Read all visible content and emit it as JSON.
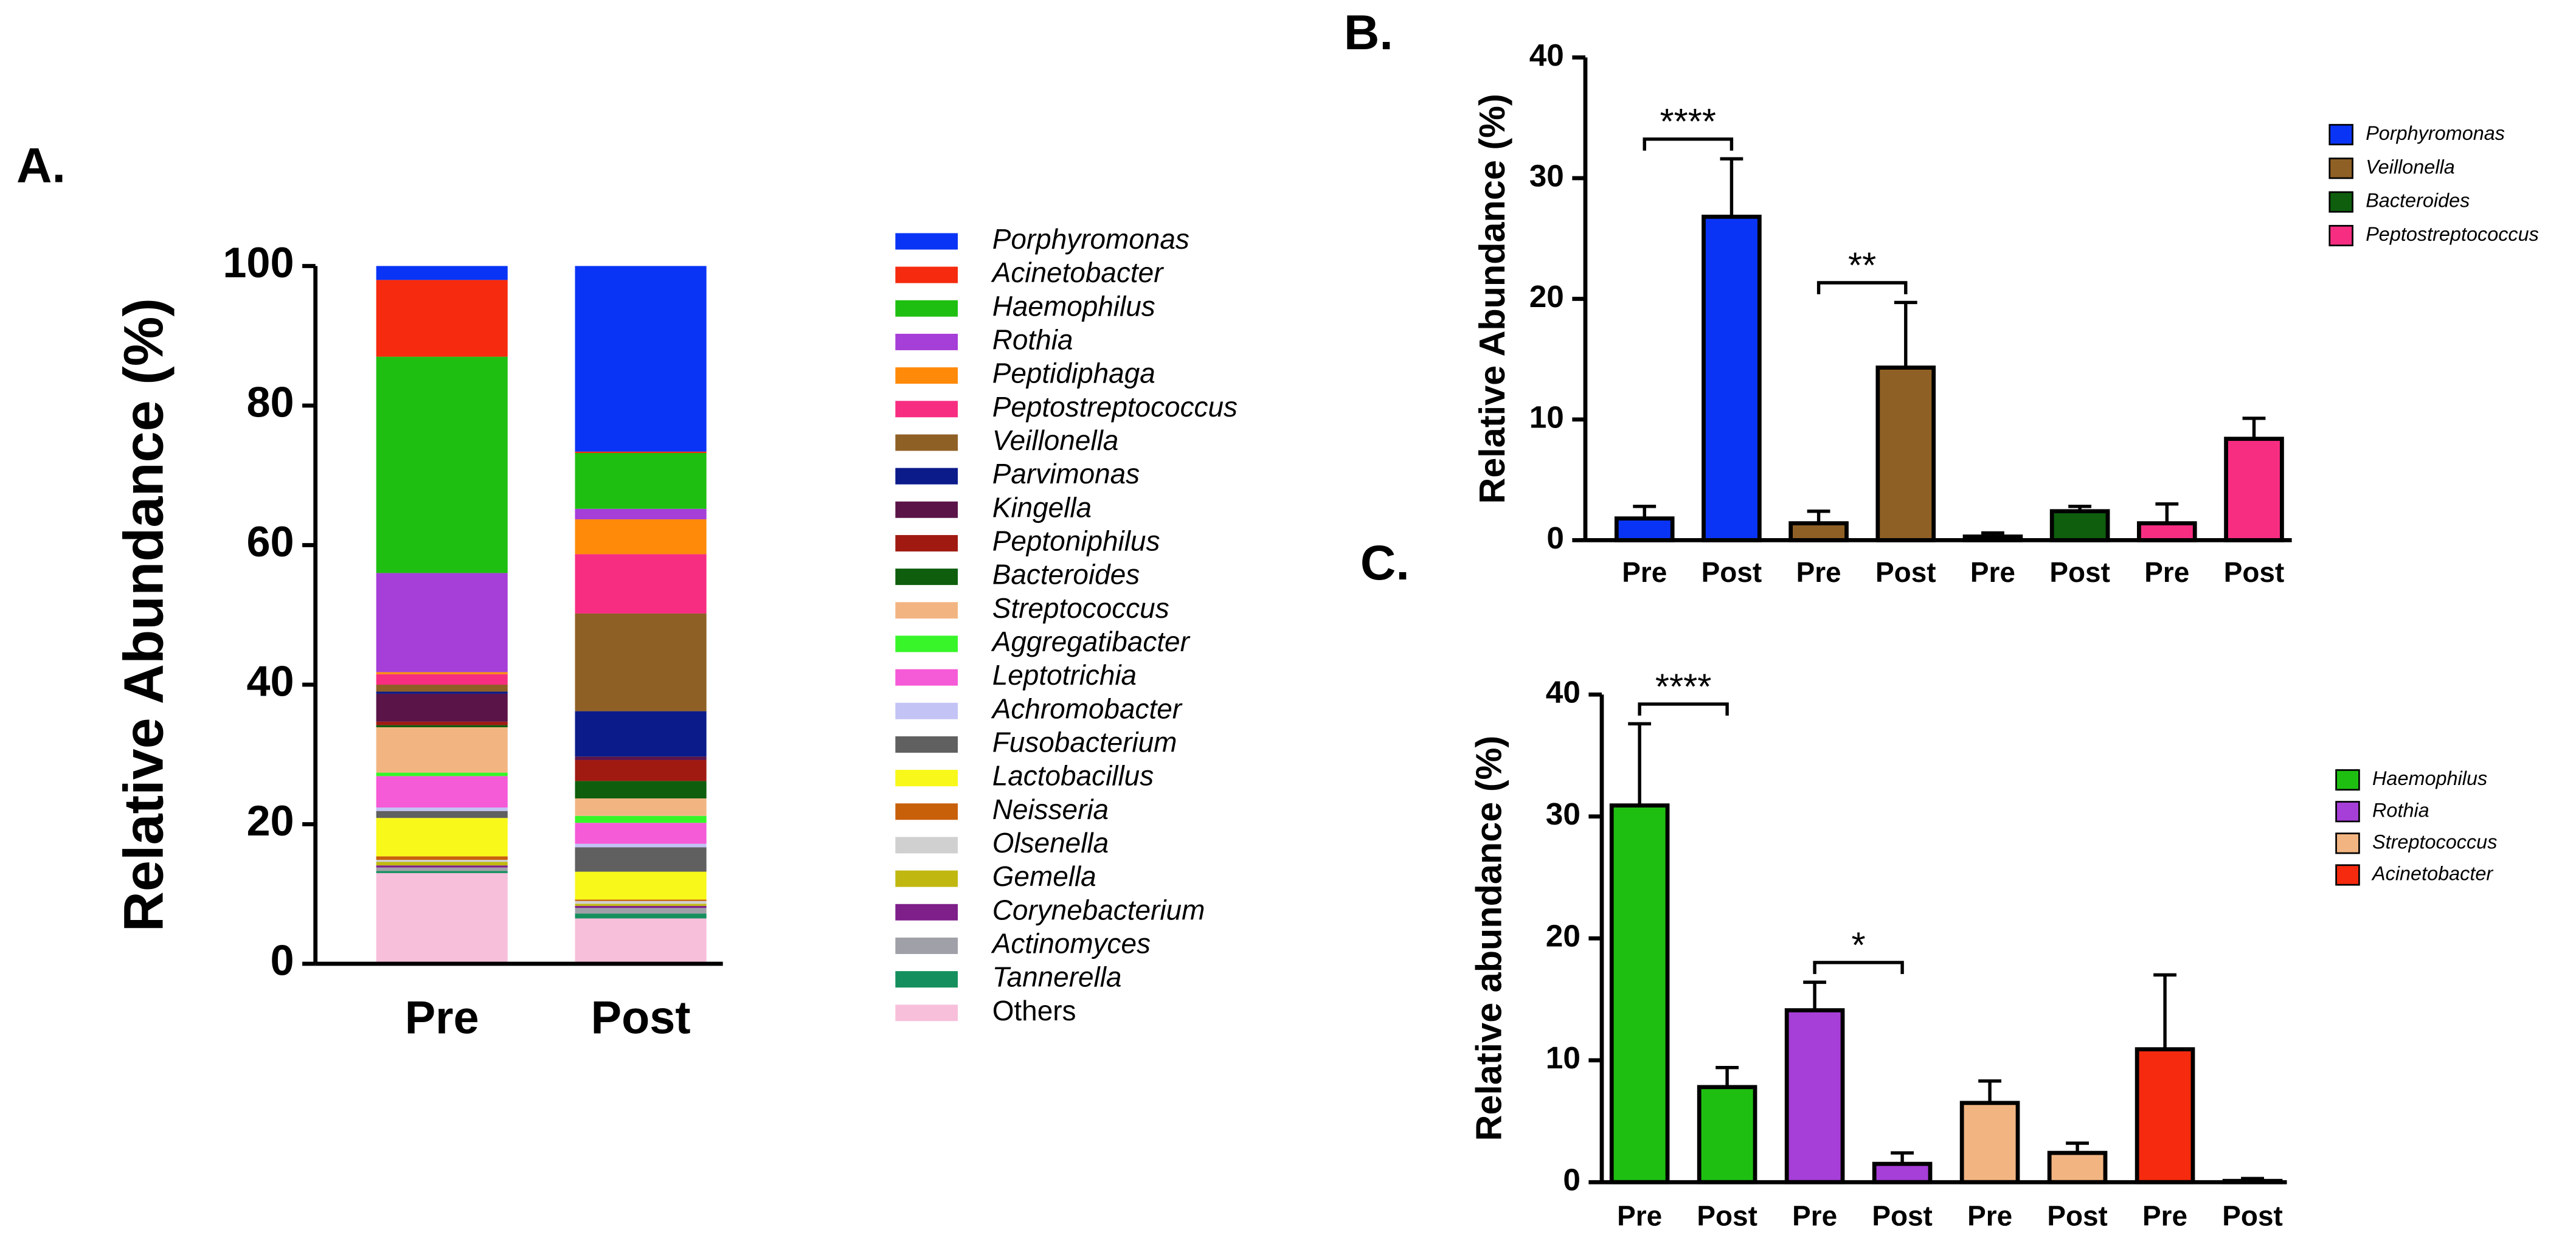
{
  "chart_data": [
    {
      "type": "stacked_bar",
      "label": "A.",
      "ylabel": "Relative Abundance (%)",
      "categories": [
        "Pre",
        "Post"
      ],
      "ylim": [
        0,
        100
      ],
      "yticks": [
        0,
        20,
        40,
        60,
        80,
        100
      ],
      "series": [
        {
          "name": "Porphyromonas",
          "color": "#0a34f5",
          "values": [
            2,
            26.6
          ]
        },
        {
          "name": "Acinetobacter",
          "color": "#f52a0e",
          "values": [
            11,
            0.2
          ]
        },
        {
          "name": "Haemophilus",
          "color": "#1fbf12",
          "values": [
            31,
            8
          ]
        },
        {
          "name": "Rothia",
          "color": "#a63ed8",
          "values": [
            14.2,
            1.5
          ]
        },
        {
          "name": "Peptidiphaga",
          "color": "#ff8a0a",
          "values": [
            0.3,
            5
          ]
        },
        {
          "name": "Peptostreptococcus",
          "color": "#f72d82",
          "values": [
            1.5,
            8.5
          ]
        },
        {
          "name": "Veillonella",
          "color": "#8f6025",
          "values": [
            1,
            14
          ]
        },
        {
          "name": "Parvimonas",
          "color": "#0b1b8a",
          "values": [
            0.3,
            6.5
          ]
        },
        {
          "name": "Kingella",
          "color": "#5a1448",
          "values": [
            4,
            0.5
          ]
        },
        {
          "name": "Peptoniphilus",
          "color": "#a01a12",
          "values": [
            0.5,
            3
          ]
        },
        {
          "name": "Bacteroides",
          "color": "#0e5e0e",
          "values": [
            0.3,
            2.5
          ]
        },
        {
          "name": "Streptococcus",
          "color": "#f2b582",
          "values": [
            6.5,
            2.5
          ]
        },
        {
          "name": "Aggregatibacter",
          "color": "#38f52a",
          "values": [
            0.5,
            1
          ]
        },
        {
          "name": "Leptotrichia",
          "color": "#f55ad7",
          "values": [
            4.5,
            3
          ]
        },
        {
          "name": "Achromobacter",
          "color": "#c3c3f5",
          "values": [
            0.5,
            0.5
          ]
        },
        {
          "name": "Fusobacterium",
          "color": "#606060",
          "values": [
            1,
            3.5
          ]
        },
        {
          "name": "Lactobacillus",
          "color": "#f8f81a",
          "values": [
            5.5,
            4
          ]
        },
        {
          "name": "Neisseria",
          "color": "#c8600a",
          "values": [
            0.5,
            0.2
          ]
        },
        {
          "name": "Olsenella",
          "color": "#d0d0d0",
          "values": [
            0.3,
            0.4
          ]
        },
        {
          "name": "Gemella",
          "color": "#c0b810",
          "values": [
            0.5,
            0.3
          ]
        },
        {
          "name": "Corynebacterium",
          "color": "#7e1f8a",
          "values": [
            0.3,
            0.3
          ]
        },
        {
          "name": "Actinomyces",
          "color": "#a0a0a8",
          "values": [
            0.5,
            0.8
          ]
        },
        {
          "name": "Tannerella",
          "color": "#168f5f",
          "values": [
            0.3,
            0.7
          ]
        },
        {
          "name": "Others",
          "color": "#f7bfda",
          "italic": false,
          "values": [
            13,
            6.5
          ]
        }
      ]
    },
    {
      "type": "bar",
      "label": "B.",
      "ylabel": "Relative Abundance (%)",
      "categories": [
        "Pre",
        "Post"
      ],
      "ylim": [
        0,
        40
      ],
      "yticks": [
        0,
        10,
        20,
        30,
        40
      ],
      "series": [
        {
          "name": "Porphyromonas",
          "color": "#0a34f5",
          "values": [
            1.8,
            26.8
          ],
          "errors": [
            1.0,
            4.8
          ],
          "annotation": "****"
        },
        {
          "name": "Veillonella",
          "color": "#8f6025",
          "values": [
            1.4,
            14.3
          ],
          "errors": [
            1.0,
            5.4
          ],
          "annotation": "**"
        },
        {
          "name": "Bacteroides",
          "color": "#0e5e0e",
          "values": [
            0.3,
            2.4
          ],
          "errors": [
            0.3,
            0.4
          ]
        },
        {
          "name": "Peptostreptococcus",
          "color": "#f72d82",
          "values": [
            1.4,
            8.4
          ],
          "errors": [
            1.6,
            1.7
          ]
        }
      ]
    },
    {
      "type": "bar",
      "label": "C.",
      "ylabel": "Relative abundance (%)",
      "categories": [
        "Pre",
        "Post"
      ],
      "ylim": [
        0,
        40
      ],
      "yticks": [
        0,
        10,
        20,
        30,
        40
      ],
      "series": [
        {
          "name": "Haemophilus",
          "color": "#1fbf12",
          "values": [
            30.9,
            7.8
          ],
          "errors": [
            6.7,
            1.6
          ],
          "annotation": "****"
        },
        {
          "name": "Rothia",
          "color": "#a63ed8",
          "values": [
            14.1,
            1.5
          ],
          "errors": [
            2.3,
            0.9
          ],
          "annotation": "*"
        },
        {
          "name": "Streptococcus",
          "color": "#f2b582",
          "values": [
            6.5,
            2.4
          ],
          "errors": [
            1.8,
            0.8
          ]
        },
        {
          "name": "Acinetobacter",
          "color": "#f52a0e",
          "values": [
            10.9,
            0.1
          ],
          "errors": [
            6.1,
            0.2
          ]
        }
      ]
    }
  ]
}
